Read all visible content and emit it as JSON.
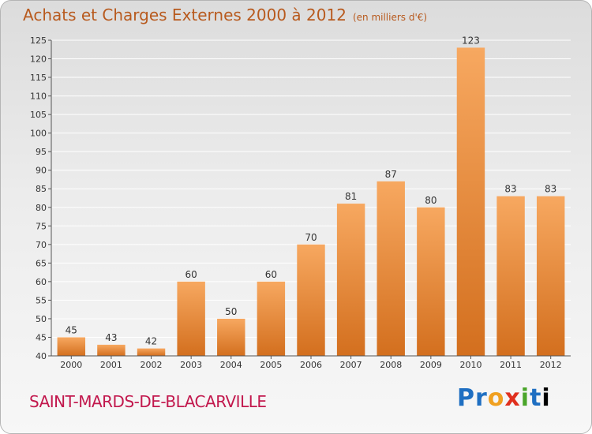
{
  "header": {
    "title": "Achats et Charges Externes 2000 à 2012",
    "unit": "(en milliers d'€)"
  },
  "footer": {
    "town": "SAINT-MARDS-DE-BLACARVILLE",
    "logo_letters": [
      "P",
      "r",
      "o",
      "x",
      "i",
      "t",
      "i"
    ]
  },
  "colors": {
    "bar_light": "#f7a860",
    "bar_dark": "#d36f1e",
    "grid": "#ffffff",
    "title": "#b85a1e",
    "town": "#c2184d"
  },
  "chart_data": {
    "type": "bar",
    "title": "Achats et Charges Externes 2000 à 2012",
    "subtitle": "(en milliers d'€)",
    "categories": [
      "2000",
      "2001",
      "2002",
      "2003",
      "2004",
      "2005",
      "2006",
      "2007",
      "2008",
      "2009",
      "2010",
      "2011",
      "2012"
    ],
    "values": [
      45,
      43,
      42,
      60,
      50,
      60,
      70,
      81,
      87,
      80,
      123,
      83,
      83
    ],
    "ylim": [
      40,
      125
    ],
    "yticks": [
      40,
      45,
      50,
      55,
      60,
      65,
      70,
      75,
      80,
      85,
      90,
      95,
      100,
      105,
      110,
      115,
      120,
      125
    ],
    "grid": true,
    "data_labels": true
  }
}
